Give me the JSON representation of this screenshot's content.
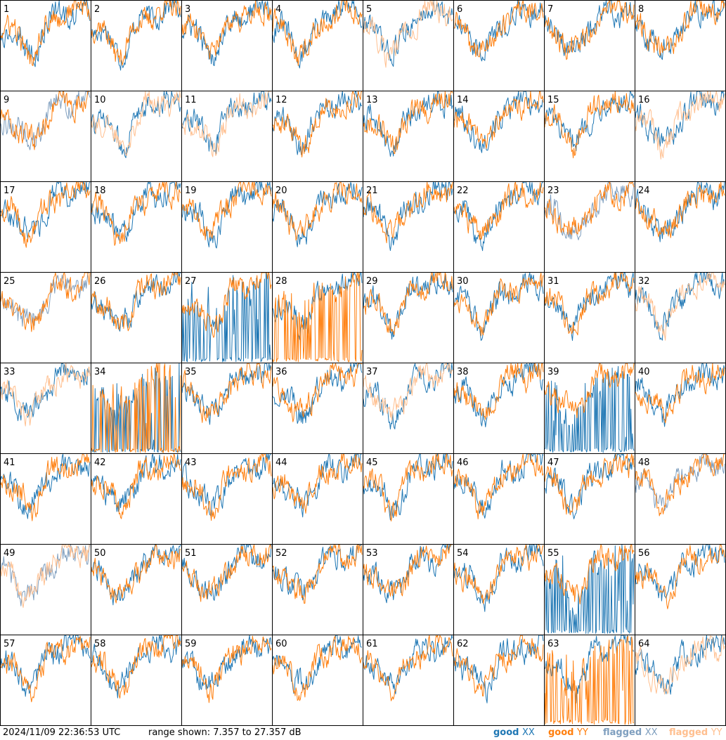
{
  "footer": {
    "timestamp": "2024/11/09 22:36:53 UTC",
    "range": "range shown: 7.357 to 27.357 dB"
  },
  "legend": {
    "good_xx": {
      "word": "good",
      "pol": "XX",
      "color": "#1f77b4"
    },
    "good_yy": {
      "word": "good",
      "pol": "YY",
      "color": "#ff7f0e"
    },
    "flagged_xx": {
      "word": "flagged",
      "pol": "XX",
      "color": "#7f9fbf"
    },
    "flagged_yy": {
      "word": "flagged",
      "pol": "YY",
      "color": "#ffbf8f"
    }
  },
  "chart_data": {
    "type": "line",
    "ylim": [
      7.357,
      27.357
    ],
    "units": "dB",
    "layout": "8x8 small multiples",
    "panel_labels": [
      "1",
      "2",
      "3",
      "4",
      "5",
      "6",
      "7",
      "8",
      "9",
      "10",
      "11",
      "12",
      "13",
      "14",
      "15",
      "16",
      "17",
      "18",
      "19",
      "20",
      "21",
      "22",
      "23",
      "24",
      "25",
      "26",
      "27",
      "28",
      "29",
      "30",
      "31",
      "32",
      "33",
      "34",
      "35",
      "36",
      "37",
      "38",
      "39",
      "40",
      "41",
      "42",
      "43",
      "44",
      "45",
      "46",
      "47",
      "48",
      "49",
      "50",
      "51",
      "52",
      "53",
      "54",
      "55",
      "56",
      "57",
      "58",
      "59",
      "60",
      "61",
      "62",
      "63",
      "64"
    ],
    "flagged_xx": [
      "9",
      "23",
      "25",
      "48",
      "49"
    ],
    "flagged_yy": [
      "5",
      "10",
      "11",
      "16",
      "32",
      "33",
      "37",
      "49",
      "64"
    ],
    "dropout_xx": [
      "27",
      "34",
      "39",
      "55"
    ],
    "dropout_yy": [
      "28",
      "34",
      "63"
    ],
    "note": "Each panel shows an XX (blue) and YY (orange) bandpass spectrum between the dB range limits; flagged polarizations drawn in pale colors."
  }
}
